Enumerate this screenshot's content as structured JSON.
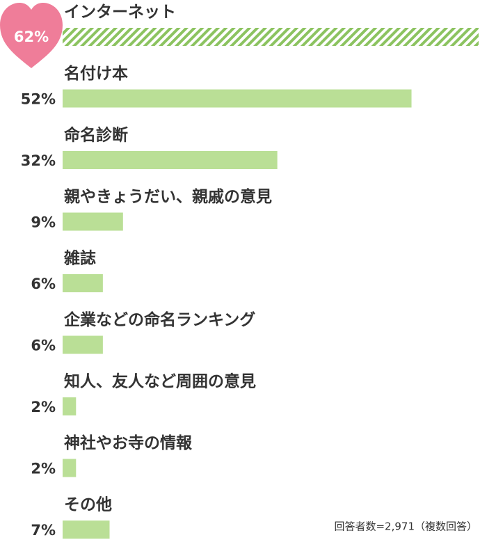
{
  "chart_data": {
    "type": "bar",
    "orientation": "horizontal",
    "categories": [
      "インターネット",
      "名付け本",
      "命名診断",
      "親やきょうだい、親戚の意見",
      "雑誌",
      "企業などの命名ランキング",
      "知人、友人など周囲の意見",
      "神社やお寺の情報",
      "その他"
    ],
    "values": [
      62,
      52,
      32,
      9,
      6,
      6,
      2,
      2,
      7
    ],
    "value_labels": [
      "62%",
      "52%",
      "32%",
      "9%",
      "6%",
      "6%",
      "2%",
      "2%",
      "7%"
    ],
    "color": "#badf96",
    "highlight_color": "#ef7d99",
    "xlim": [
      0,
      62
    ],
    "note": "回答者数=2,971（複数回答）"
  }
}
